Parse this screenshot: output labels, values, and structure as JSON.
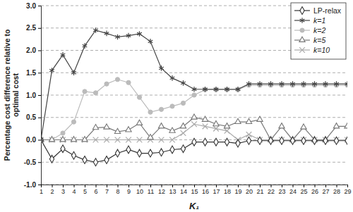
{
  "chart_data": {
    "type": "line",
    "x_label": "K₁",
    "y_label": [
      "Percentage cost difference relative to",
      "optimal cost"
    ],
    "x": [
      1,
      2,
      3,
      4,
      5,
      6,
      7,
      8,
      9,
      10,
      11,
      12,
      13,
      14,
      15,
      16,
      17,
      18,
      19,
      20,
      21,
      22,
      23,
      24,
      25,
      26,
      27,
      28,
      29
    ],
    "xlim": [
      1,
      29
    ],
    "xticks": [
      1,
      2,
      3,
      4,
      5,
      6,
      7,
      8,
      9,
      10,
      11,
      12,
      13,
      14,
      15,
      16,
      17,
      18,
      19,
      20,
      21,
      22,
      23,
      24,
      25,
      26,
      27,
      28,
      29
    ],
    "ylim": [
      -1,
      3
    ],
    "yticks": [
      {
        "value": -1,
        "label": "-1.0"
      },
      {
        "value": -0.5,
        "label": "-0.5"
      },
      {
        "value": 0,
        "label": "0.0"
      },
      {
        "value": 0.5,
        "label": "0.5"
      },
      {
        "value": 1,
        "label": "1.0"
      },
      {
        "value": 1.5,
        "label": "1.5"
      },
      {
        "value": 2,
        "label": "2.0"
      },
      {
        "value": 2.5,
        "label": "2.5"
      },
      {
        "value": 3,
        "label": "3.0"
      }
    ],
    "grid": true,
    "legend": "top-right",
    "series": [
      {
        "name": "LP-relax",
        "color": "#333333",
        "marker": "diamond",
        "values": [
          0,
          -0.43,
          -0.2,
          -0.35,
          -0.45,
          -0.5,
          -0.45,
          -0.3,
          -0.22,
          -0.3,
          -0.3,
          -0.28,
          -0.22,
          -0.2,
          -0.05,
          -0.05,
          -0.05,
          -0.05,
          -0.08,
          -0.02,
          -0.02,
          -0.02,
          -0.02,
          -0.02,
          -0.02,
          -0.02,
          -0.02,
          -0.02,
          -0.02
        ]
      },
      {
        "name": "k=1",
        "color": "#444444",
        "marker": "asterisk",
        "values": [
          0,
          1.55,
          1.9,
          1.5,
          2.1,
          2.45,
          2.38,
          2.3,
          2.33,
          2.37,
          2.2,
          1.6,
          1.38,
          1.27,
          1.13,
          1.13,
          1.13,
          1.13,
          1.13,
          1.25,
          1.25,
          1.25,
          1.25,
          1.25,
          1.25,
          1.25,
          1.25,
          1.25,
          1.25
        ]
      },
      {
        "name": "k=2",
        "color": "#bbbbbb",
        "marker": "circle",
        "values": [
          0,
          0,
          0.15,
          0.4,
          1.08,
          1.05,
          1.25,
          1.35,
          1.28,
          0.95,
          0.62,
          0.68,
          0.75,
          0.82,
          1.0,
          1.12,
          1.12,
          1.12,
          1.12,
          1.22,
          1.22,
          1.22,
          1.22,
          1.22,
          1.22,
          1.22,
          1.22,
          1.22,
          1.22
        ]
      },
      {
        "name": "k=5",
        "color": "#777777",
        "marker": "triangle",
        "values": [
          0,
          0,
          0,
          0,
          0,
          0.27,
          0.28,
          0.18,
          0.22,
          0.37,
          0.05,
          0.3,
          0.2,
          0.3,
          0.5,
          0.45,
          0.35,
          0.3,
          0.4,
          0.4,
          0.45,
          0,
          0.3,
          0,
          0.28,
          0,
          0,
          0.3,
          0.3
        ]
      },
      {
        "name": "k=10",
        "color": "#aaaaaa",
        "marker": "x",
        "values": [
          0,
          0,
          0,
          0,
          0,
          0,
          0,
          0,
          0,
          0,
          0,
          0,
          0,
          0.15,
          0.35,
          0.3,
          0.25,
          0.2,
          0,
          0.12,
          0,
          0,
          0,
          0,
          0,
          0,
          0,
          0,
          0
        ]
      }
    ]
  }
}
